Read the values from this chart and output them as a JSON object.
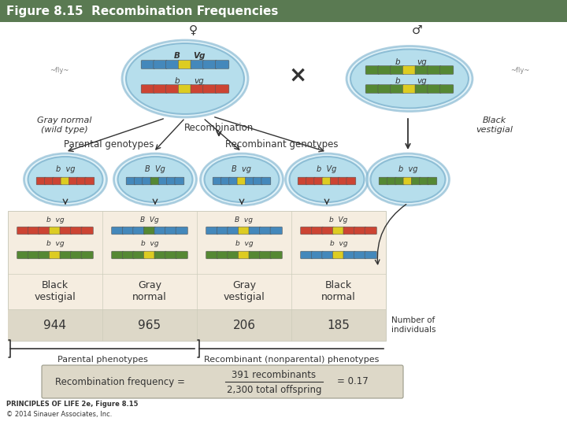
{
  "title": "Figure 8.15  Recombination Frequencies",
  "title_bg": "#5a7a52",
  "title_color": "#ffffff",
  "title_fontsize": 11,
  "bg_color": "#ffffff",
  "female_symbol": "♀",
  "male_symbol": "♂",
  "cross_symbol": "×",
  "gray_normal_label": "Gray normal\n(wild type)",
  "black_vestigial_label": "Black\nvestigial",
  "recombination_label": "Recombination",
  "parental_genotypes_label": "Parental genotypes",
  "recombinant_genotypes_label": "Recombinant genotypes",
  "phenotype_labels": [
    "Black\nvestigial",
    "Gray\nnormal",
    "Gray\nvestigial",
    "Black\nnormal"
  ],
  "counts": [
    "944",
    "965",
    "206",
    "185"
  ],
  "number_of_individuals": "Number of\nindividuals",
  "parental_phenotypes": "Parental phenotypes",
  "recombinant_phenotypes": "Recombinant (nonparental) phenotypes",
  "recomb_freq_label": "Recombination frequency =",
  "numerator": "391 recombinants",
  "denominator": "2,300 total offspring",
  "result": "= 0.17",
  "principles_text": "PRINCIPLES OF LIFE 2e, Figure 8.15",
  "copyright_text": "© 2014 Sinauer Associates, Inc.",
  "table_bg": "#f5ede0",
  "table_count_bg": "#ddd8c8",
  "recomb_box_bg": "#ddd8c8",
  "dish_blue": "#a8d8e8",
  "dish_edge": "#7ab0cc",
  "chrom_blue": "#4488bb",
  "chrom_red": "#cc4433",
  "chrom_orange": "#dd7722",
  "chrom_green": "#558833",
  "chrom_yellow": "#ddcc22",
  "chrom_light_blue": "#88bbdd",
  "text_dark": "#333333",
  "text_italic_color": "#444444"
}
